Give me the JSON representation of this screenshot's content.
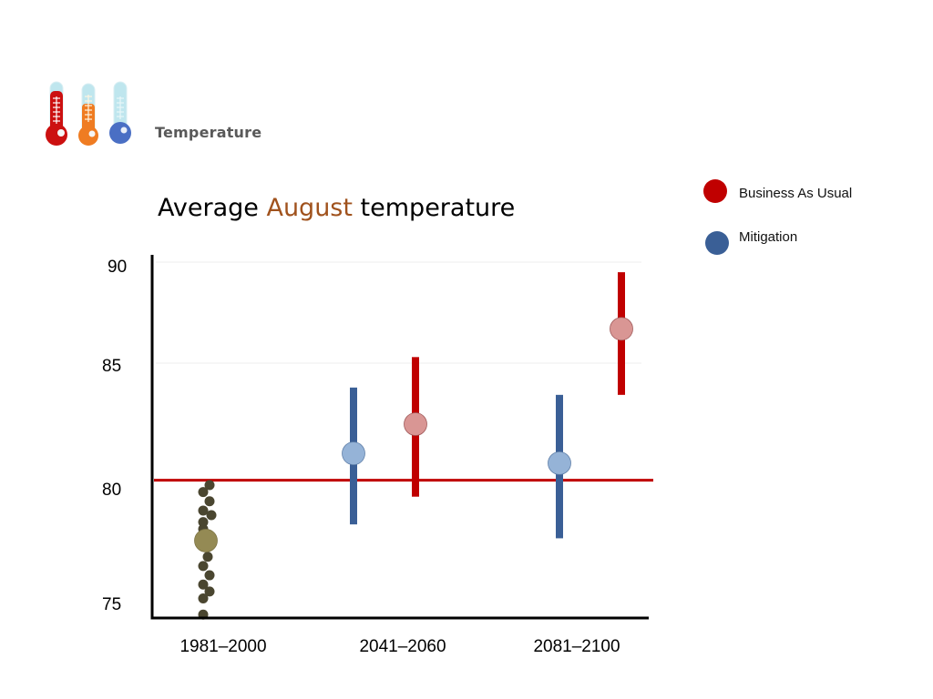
{
  "header": {
    "icon": "thermometers-icon",
    "label": "Temperature"
  },
  "title": {
    "prefix": "Average ",
    "highlight": "August",
    "suffix": " temperature",
    "highlight_color": "#a0521d"
  },
  "legend": [
    {
      "label": "Business As Usual",
      "color": "#c00000"
    },
    {
      "label": "Mitigation",
      "color": "#3a5f96"
    }
  ],
  "colors": {
    "bau_bar": "#c00000",
    "bau_point": "#d99694",
    "mitigation_bar": "#3a5f96",
    "mitigation_point": "#95b3d7",
    "observed_point": "#4a4630",
    "observed_mean": "#948a54",
    "baseline": "#c00000",
    "axis": "#000000",
    "grid": "#eeeeee"
  },
  "chart_data": {
    "type": "scatter",
    "title": "Average August temperature",
    "xlabel": "",
    "ylabel": "",
    "ylim": [
      72.4,
      90.5
    ],
    "yticks": [
      75,
      80,
      85,
      90
    ],
    "grid": true,
    "legend_position": "right",
    "categories": [
      "1981–2000",
      "2041–2060",
      "2081–2100"
    ],
    "baseline": 80.2,
    "observed": {
      "category": "1981–2000",
      "mean": 77.6,
      "annual_values": [
        80.0,
        79.7,
        79.3,
        78.9,
        78.7,
        78.4,
        78.1,
        77.8,
        76.9,
        76.5,
        76.1,
        75.7,
        75.4,
        75.1,
        74.4
      ]
    },
    "series": [
      {
        "name": "Mitigation",
        "values": [
          null,
          81.3,
          80.9
        ],
        "low": [
          null,
          78.3,
          77.7
        ],
        "high": [
          null,
          84.0,
          83.7
        ]
      },
      {
        "name": "Business As Usual",
        "values": [
          null,
          82.5,
          86.7
        ],
        "low": [
          null,
          79.5,
          83.7
        ],
        "high": [
          null,
          85.3,
          89.5
        ]
      }
    ]
  }
}
